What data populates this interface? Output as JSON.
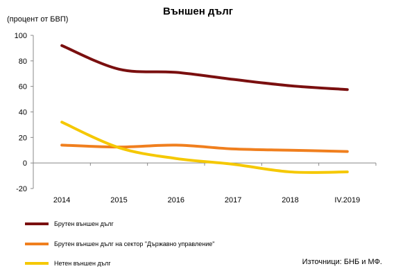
{
  "chart_data": {
    "type": "line",
    "title": "Външен дълг",
    "unit_label": "(процент от БВП)",
    "xlabel": "",
    "ylabel": "",
    "categories": [
      "2014",
      "2015",
      "2016",
      "2017",
      "2018",
      "IV.2019"
    ],
    "ylim": [
      -20,
      100
    ],
    "yticks": [
      -20,
      0,
      20,
      40,
      60,
      80,
      100
    ],
    "grid": false,
    "legend_position": "bottom",
    "series": [
      {
        "name": "Брутен външен дълг",
        "color": "#7a0f0f",
        "values": [
          92,
          73.5,
          71,
          65.5,
          60.5,
          57.5
        ]
      },
      {
        "name": "Брутен външен дълг на сектор \"Държавно управление\"",
        "color": "#f07f1e",
        "values": [
          14,
          12.5,
          14,
          11,
          10,
          9
        ]
      },
      {
        "name": "Нетен външен дълг",
        "color": "#f5c800",
        "values": [
          32,
          12,
          3.5,
          -1,
          -7,
          -7
        ]
      }
    ],
    "source": "Източници: БНБ и МФ."
  }
}
